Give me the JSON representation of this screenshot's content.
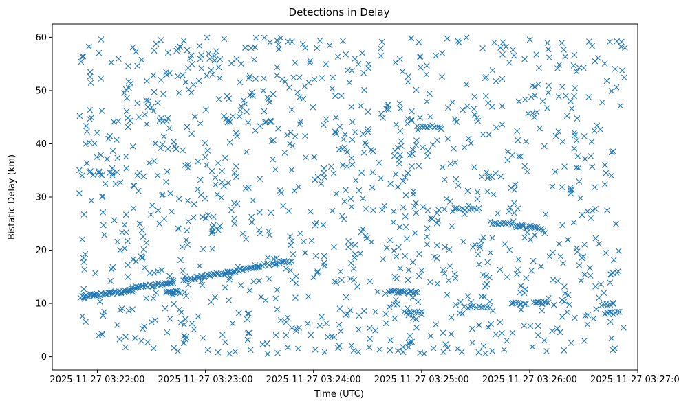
{
  "chart_data": {
    "type": "scatter",
    "title": "Detections in Delay",
    "xlabel": "Time (UTC)",
    "ylabel": "Bistatic Delay (km)",
    "marker": "x",
    "color": "#1f77b4",
    "x_unit": "seconds since 2025-11-27 03:22:00",
    "xlim": [
      -25,
      300
    ],
    "ylim": [
      -2.5,
      62.5
    ],
    "x_ticks": [
      {
        "value": 0,
        "label": "2025-11-27 03:22:00"
      },
      {
        "value": 60,
        "label": "2025-11-27 03:23:00"
      },
      {
        "value": 120,
        "label": "2025-11-27 03:24:00"
      },
      {
        "value": 180,
        "label": "2025-11-27 03:25:00"
      },
      {
        "value": 240,
        "label": "2025-11-27 03:26:00"
      },
      {
        "value": 300,
        "label": "2025-11-27 03:27:00"
      }
    ],
    "y_ticks": [
      {
        "value": 0,
        "label": "0"
      },
      {
        "value": 10,
        "label": "10"
      },
      {
        "value": 20,
        "label": "20"
      },
      {
        "value": 30,
        "label": "30"
      },
      {
        "value": 40,
        "label": "40"
      },
      {
        "value": 50,
        "label": "50"
      },
      {
        "value": 60,
        "label": "60"
      }
    ],
    "tracks": [
      {
        "x_start": -9,
        "x_end": 20,
        "y_start": 11.3,
        "y_end": 12.4,
        "count": 46
      },
      {
        "x_start": 20,
        "x_end": 42,
        "y_start": 13.0,
        "y_end": 13.9,
        "count": 28
      },
      {
        "x_start": 38,
        "x_end": 46,
        "y_start": 12.2,
        "y_end": 12.2,
        "count": 12
      },
      {
        "x_start": 48,
        "x_end": 58,
        "y_start": 14.5,
        "y_end": 15.0,
        "count": 12
      },
      {
        "x_start": 58,
        "x_end": 72,
        "y_start": 15.1,
        "y_end": 15.7,
        "count": 16
      },
      {
        "x_start": 72,
        "x_end": 90,
        "y_start": 15.9,
        "y_end": 17.0,
        "count": 18
      },
      {
        "x_start": 90,
        "x_end": 108,
        "y_start": 17.1,
        "y_end": 18.0,
        "count": 14
      },
      {
        "x_start": 162,
        "x_end": 178,
        "y_start": 12.3,
        "y_end": 12.0,
        "count": 20
      },
      {
        "x_start": 170,
        "x_end": 180,
        "y_start": 8.3,
        "y_end": 8.3,
        "count": 8
      },
      {
        "x_start": 178,
        "x_end": 190,
        "y_start": 43.3,
        "y_end": 43.3,
        "count": 10
      },
      {
        "x_start": 198,
        "x_end": 212,
        "y_start": 27.8,
        "y_end": 27.8,
        "count": 10
      },
      {
        "x_start": 204,
        "x_end": 218,
        "y_start": 9.4,
        "y_end": 9.4,
        "count": 10
      },
      {
        "x_start": 218,
        "x_end": 230,
        "y_start": 25.2,
        "y_end": 25.0,
        "count": 12
      },
      {
        "x_start": 232,
        "x_end": 246,
        "y_start": 24.5,
        "y_end": 24.2,
        "count": 16
      },
      {
        "x_start": 230,
        "x_end": 238,
        "y_start": 10.0,
        "y_end": 10.0,
        "count": 8
      },
      {
        "x_start": 242,
        "x_end": 250,
        "y_start": 10.3,
        "y_end": 10.3,
        "count": 8
      },
      {
        "x_start": 282,
        "x_end": 290,
        "y_start": 8.2,
        "y_end": 8.2,
        "count": 8
      },
      {
        "x_start": 280,
        "x_end": 286,
        "y_start": 9.8,
        "y_end": 9.8,
        "count": 6
      }
    ],
    "background_scatter": {
      "x_range": [
        -10,
        293
      ],
      "y_range": [
        0.5,
        60
      ],
      "count": 1150,
      "seed": 12345
    }
  }
}
